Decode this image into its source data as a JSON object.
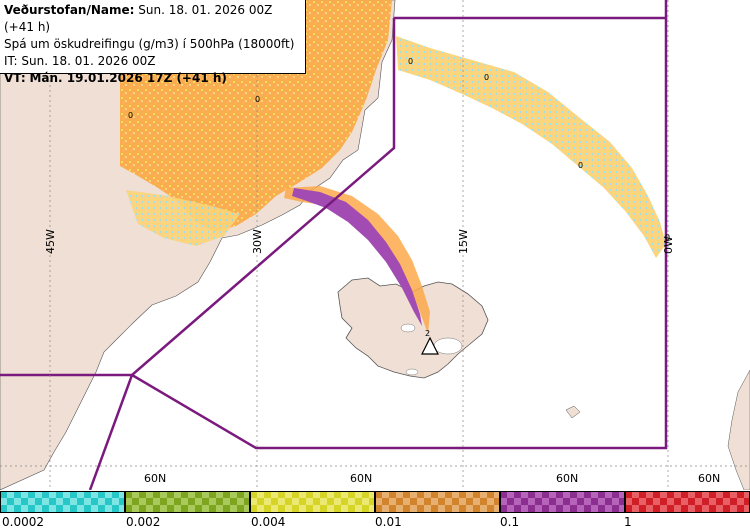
{
  "header": {
    "line1_label": "Veðurstofan/Name:",
    "line1_value": "Sun. 18. 01. 2026 00Z (+41 h)",
    "line2": "Spá um öskudreifingu (g/m3) í 500hPa (18000ft)",
    "line3": "IT: Sun. 18. 01. 2026 00Z",
    "line4_label": "VT:",
    "line4_value": "Mán. 19.01.2026 17Z (+41 h)"
  },
  "graticule": {
    "lon_labels": [
      "45W",
      "30W",
      "15W",
      "0W"
    ],
    "lat_labels": [
      "60N",
      "60N",
      "60N",
      "60N"
    ]
  },
  "contour_labels": [
    "0",
    "0",
    "0",
    "0",
    "0",
    "0",
    "2"
  ],
  "colors": {
    "land": "#efdfd4",
    "ocean": "#ffffff",
    "ash_low": "#fba94a",
    "ash_mid": "#f4e24f",
    "ash_trace": "#8fdfe6",
    "ash_high": "#a24bb3",
    "boundary": "#7b1a7e",
    "volcano_marker": "#ffffff"
  },
  "legend": {
    "bins": [
      {
        "color": "#27c7c7",
        "alt": "#7ee5e5"
      },
      {
        "color": "#7ea51f",
        "alt": "#a9c95a"
      },
      {
        "color": "#d6d426",
        "alt": "#ebe971"
      },
      {
        "color": "#d2842d",
        "alt": "#e7b071"
      },
      {
        "color": "#8c2e90",
        "alt": "#b564b9"
      },
      {
        "color": "#cf1e26",
        "alt": "#e86066"
      }
    ],
    "ticks": [
      "0.0002",
      "0.002",
      "0.004",
      "0.01",
      "0.1",
      "1"
    ]
  }
}
